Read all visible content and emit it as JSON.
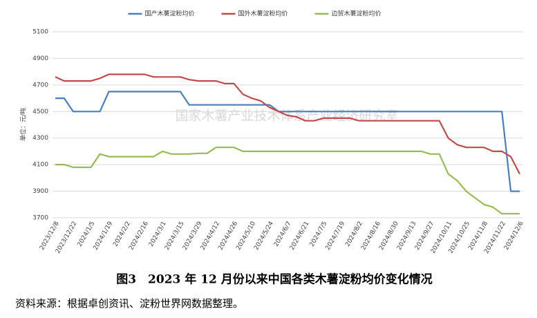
{
  "chart_data": {
    "type": "line",
    "y_label": "单位：元/吨",
    "watermark": "国家木薯产业技术体系产业经济研究室",
    "categories": [
      "2023/12/8",
      null,
      "2023/12/22",
      null,
      "2024/1/5",
      null,
      "2024/1/19",
      null,
      "2024/2/2",
      null,
      "2024/2/16",
      null,
      "2024/3/1",
      null,
      "2024/3/15",
      null,
      "2024/3/29",
      null,
      "2024/4/12",
      null,
      "2024/4/26",
      null,
      "2024/5/10",
      null,
      "2024/5/24",
      null,
      "2024/6/7",
      null,
      "2024/6/21",
      null,
      "2024/7/5",
      null,
      "2024/7/19",
      null,
      "2024/8/2",
      null,
      "2024/8/16",
      null,
      "2024/8/30",
      null,
      "2024/9/13",
      null,
      "2024/9/27",
      null,
      "2024/10/11",
      null,
      "2024/10/25",
      null,
      "2024/11/8",
      null,
      "2024/11/22",
      null,
      "2024/12/6"
    ],
    "series": [
      {
        "name": "国产木薯淀粉均价",
        "color": "#4a7ebb",
        "values": [
          4600,
          4600,
          4500,
          4500,
          4500,
          4500,
          4650,
          4650,
          4650,
          4650,
          4650,
          4650,
          4650,
          4650,
          4650,
          4550,
          4550,
          4550,
          4550,
          4550,
          4550,
          4550,
          4550,
          4550,
          4550,
          4500,
          4500,
          4500,
          4500,
          4500,
          4500,
          4500,
          4500,
          4500,
          4500,
          4500,
          4500,
          4500,
          4500,
          4500,
          4500,
          4500,
          4500,
          4500,
          4500,
          4500,
          4500,
          4500,
          4500,
          4500,
          4500,
          3900,
          3900
        ]
      },
      {
        "name": "国外木薯淀粉均价",
        "color": "#be4b48",
        "values": [
          4760,
          4730,
          4730,
          4730,
          4730,
          4750,
          4780,
          4780,
          4780,
          4780,
          4780,
          4760,
          4760,
          4760,
          4760,
          4740,
          4730,
          4730,
          4730,
          4710,
          4710,
          4630,
          4600,
          4580,
          4530,
          4500,
          4470,
          4460,
          4430,
          4430,
          4450,
          4450,
          4450,
          4450,
          4430,
          4430,
          4430,
          4430,
          4430,
          4430,
          4430,
          4430,
          4430,
          4430,
          4300,
          4250,
          4230,
          4230,
          4230,
          4200,
          4200,
          4160,
          4030
        ]
      },
      {
        "name": "边贸木薯淀粉均价",
        "color": "#98b954",
        "values": [
          4100,
          4100,
          4080,
          4080,
          4080,
          4180,
          4160,
          4160,
          4160,
          4160,
          4160,
          4160,
          4200,
          4180,
          4180,
          4180,
          4185,
          4185,
          4230,
          4230,
          4230,
          4200,
          4200,
          4200,
          4200,
          4200,
          4200,
          4200,
          4200,
          4200,
          4200,
          4200,
          4200,
          4200,
          4200,
          4200,
          4200,
          4200,
          4200,
          4200,
          4200,
          4200,
          4180,
          4180,
          4030,
          3980,
          3900,
          3850,
          3800,
          3780,
          3730,
          3730,
          3730
        ]
      }
    ],
    "ylim": [
      3700,
      5100
    ],
    "yticks": [
      3700,
      3900,
      4100,
      4300,
      4500,
      4700,
      4900,
      5100
    ],
    "grid": true
  },
  "caption": "图3　2023 年 12 月份以来中国各类木薯淀粉均价变化情况",
  "source": "资料来源：根据卓创资讯、淀粉世界网数据整理。"
}
